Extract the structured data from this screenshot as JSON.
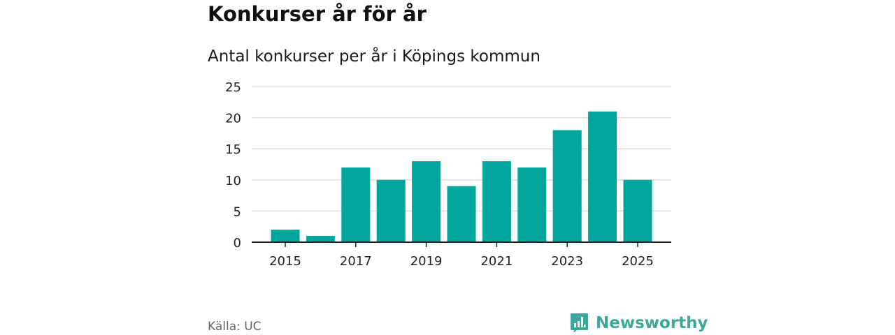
{
  "header": {
    "title": "Konkurser år för år",
    "subtitle": "Antal konkurser per år i Köpings kommun"
  },
  "footer": {
    "source": "Källa: UC",
    "brand": "Newsworthy",
    "brand_icon": "newsworthy-logo-icon",
    "brand_color": "#3da89a"
  },
  "colors": {
    "bar": "#00a59b",
    "grid": "#dddddd",
    "axis": "#222222"
  },
  "chart_data": {
    "type": "bar",
    "title": "Konkurser år för år",
    "subtitle": "Antal konkurser per år i Köpings kommun",
    "categories": [
      "2015",
      "2016",
      "2017",
      "2018",
      "2019",
      "2020",
      "2021",
      "2022",
      "2023",
      "2024",
      "2025"
    ],
    "values": [
      2,
      1,
      12,
      10,
      13,
      9,
      13,
      12,
      18,
      21,
      10
    ],
    "x_tick_labels": [
      "2015",
      "2017",
      "2019",
      "2021",
      "2023",
      "2025"
    ],
    "y_ticks": [
      0,
      5,
      10,
      15,
      20,
      25
    ],
    "ylim": [
      0,
      25
    ],
    "xlabel": "",
    "ylabel": "",
    "grid": true,
    "legend": "none"
  }
}
